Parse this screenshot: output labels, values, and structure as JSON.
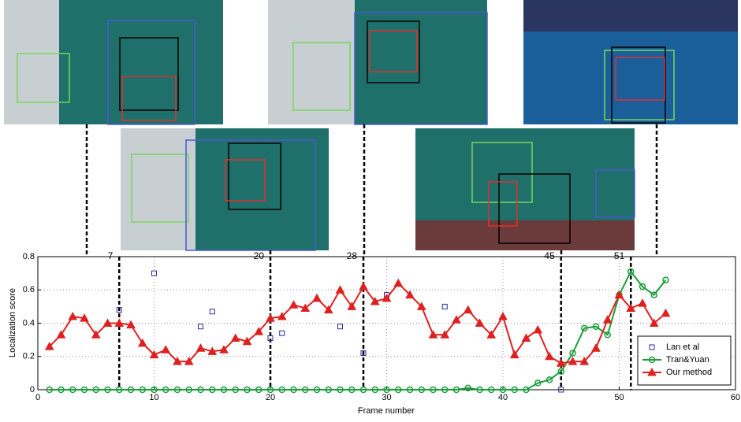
{
  "chart_data": {
    "type": "line",
    "xlabel": "Frame number",
    "ylabel": "Localization score",
    "xlim": [
      0,
      60
    ],
    "ylim": [
      0,
      0.8
    ],
    "xticks": [
      0,
      10,
      20,
      30,
      40,
      50,
      60
    ],
    "yticks": [
      0,
      0.2,
      0.4,
      0.6,
      0.8
    ],
    "grid": true,
    "legend": "lower right",
    "markers": [
      7,
      20,
      28,
      45,
      51
    ],
    "series": [
      {
        "name": "Lan et al",
        "color": "#2b2b9e",
        "marker": "square",
        "line": false,
        "x": [
          7,
          10,
          14,
          15,
          20,
          21,
          26,
          28,
          30,
          35,
          45
        ],
        "values": [
          0.48,
          0.7,
          0.38,
          0.47,
          0.31,
          0.34,
          0.38,
          0.22,
          0.57,
          0.5,
          0.0
        ]
      },
      {
        "name": "Tran&Yuan",
        "color": "#1a9e3a",
        "marker": "circle",
        "line": true,
        "x": [
          1,
          2,
          3,
          4,
          5,
          6,
          7,
          8,
          9,
          10,
          11,
          12,
          13,
          14,
          15,
          16,
          17,
          18,
          19,
          20,
          21,
          22,
          23,
          24,
          25,
          26,
          27,
          28,
          29,
          30,
          31,
          32,
          33,
          34,
          35,
          36,
          37,
          38,
          39,
          40,
          41,
          42,
          43,
          44,
          45,
          46,
          47,
          48,
          49,
          50,
          51,
          52,
          53,
          54
        ],
        "values": [
          0,
          0,
          0,
          0,
          0,
          0,
          0,
          0,
          0,
          0,
          0,
          0,
          0,
          0,
          0,
          0,
          0,
          0,
          0,
          0,
          0,
          0,
          0,
          0,
          0,
          0,
          0,
          0,
          0,
          0,
          0,
          0,
          0,
          0,
          0,
          0,
          0.01,
          0,
          0,
          0,
          0,
          0,
          0.04,
          0.06,
          0.11,
          0.22,
          0.37,
          0.38,
          0.33,
          0.57,
          0.71,
          0.62,
          0.57,
          0.66
        ]
      },
      {
        "name": "Our method",
        "color": "#e02020",
        "marker": "triangle",
        "line": true,
        "x": [
          1,
          2,
          3,
          4,
          5,
          6,
          7,
          8,
          9,
          10,
          11,
          12,
          13,
          14,
          15,
          16,
          17,
          18,
          19,
          20,
          21,
          22,
          23,
          24,
          25,
          26,
          27,
          28,
          29,
          30,
          31,
          32,
          33,
          34,
          35,
          36,
          37,
          38,
          39,
          40,
          41,
          42,
          43,
          44,
          45,
          46,
          47,
          48,
          49,
          50,
          51,
          52,
          53,
          54
        ],
        "values": [
          0.26,
          0.33,
          0.44,
          0.43,
          0.33,
          0.4,
          0.4,
          0.39,
          0.28,
          0.21,
          0.24,
          0.17,
          0.17,
          0.25,
          0.23,
          0.24,
          0.31,
          0.29,
          0.35,
          0.43,
          0.44,
          0.51,
          0.49,
          0.55,
          0.48,
          0.6,
          0.5,
          0.62,
          0.53,
          0.55,
          0.64,
          0.57,
          0.5,
          0.33,
          0.33,
          0.42,
          0.48,
          0.4,
          0.33,
          0.44,
          0.21,
          0.31,
          0.36,
          0.2,
          0.16,
          0.17,
          0.17,
          0.25,
          0.42,
          0.57,
          0.49,
          0.52,
          0.4,
          0.46
        ]
      }
    ]
  }
}
